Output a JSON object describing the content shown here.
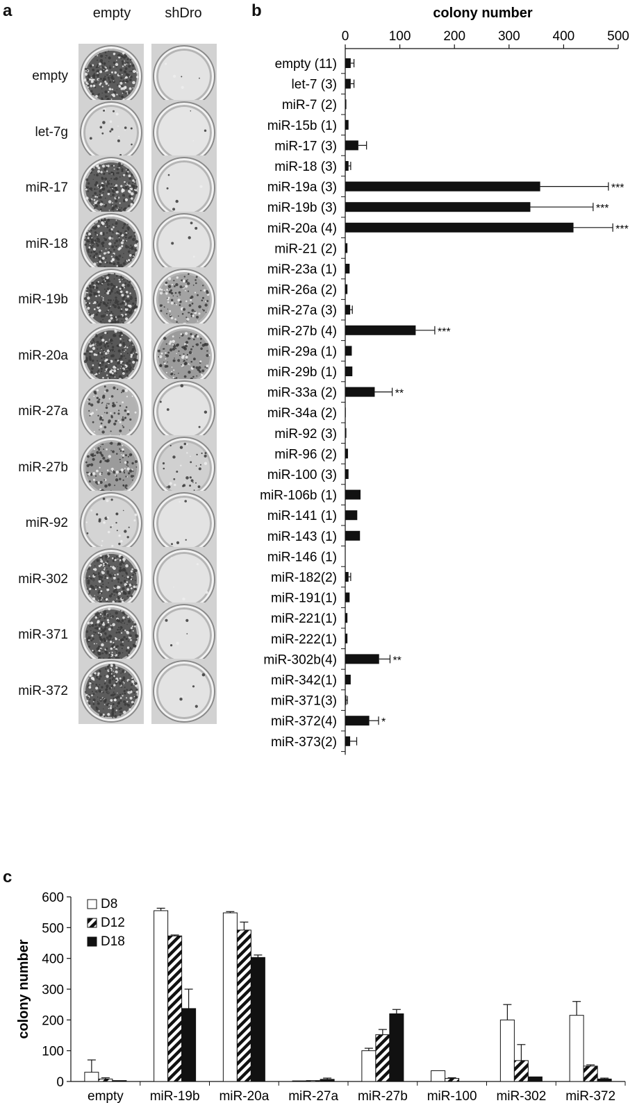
{
  "panel_a": {
    "letter": "a",
    "columns": [
      "empty",
      "shDro"
    ],
    "rows": [
      {
        "label": "empty",
        "plates": [
          0.92,
          0.02
        ]
      },
      {
        "label": "let-7g",
        "plates": [
          0.08,
          0.01
        ]
      },
      {
        "label": "miR-17",
        "plates": [
          0.9,
          0.02
        ]
      },
      {
        "label": "miR-18",
        "plates": [
          0.92,
          0.02
        ]
      },
      {
        "label": "miR-19b",
        "plates": [
          0.95,
          0.45
        ]
      },
      {
        "label": "miR-20a",
        "plates": [
          0.95,
          0.5
        ]
      },
      {
        "label": "miR-27a",
        "plates": [
          0.35,
          0.02
        ]
      },
      {
        "label": "miR-27b",
        "plates": [
          0.5,
          0.15
        ]
      },
      {
        "label": "miR-92",
        "plates": [
          0.12,
          0.02
        ]
      },
      {
        "label": "miR-302",
        "plates": [
          0.9,
          0.02
        ]
      },
      {
        "label": "miR-371",
        "plates": [
          0.92,
          0.02
        ]
      },
      {
        "label": "miR-372",
        "plates": [
          0.92,
          0.02
        ]
      }
    ],
    "colors": {
      "plate_bg": "#d2d2d2",
      "colony": "#3a3a3a"
    }
  },
  "chart_data": [
    {
      "panel": "b",
      "type": "bar",
      "orientation": "horizontal",
      "title": "colony number",
      "xlim": [
        0,
        500
      ],
      "xticks": [
        "0",
        "100",
        "200",
        "300",
        "400",
        "500"
      ],
      "bar_color": "#111111",
      "categories": [
        "empty (11)",
        "let-7 (3)",
        "miR-7 (2)",
        "miR-15b (1)",
        "miR-17 (3)",
        "miR-18 (3)",
        "miR-19a (3)",
        "miR-19b (3)",
        "miR-20a (4)",
        "miR-21 (2)",
        "miR-23a (1)",
        "miR-26a (2)",
        "miR-27a (3)",
        "miR-27b (4)",
        "miR-29a (1)",
        "miR-29b (1)",
        "miR-33a (2)",
        "miR-34a (2)",
        "miR-92 (3)",
        "miR-96 (2)",
        "miR-100 (3)",
        "miR-106b (1)",
        "miR-141 (1)",
        "miR-143 (1)",
        "miR-146 (1)",
        "miR-182(2)",
        "miR-191(1)",
        "miR-221(1)",
        "miR-222(1)",
        "miR-302b(4)",
        "miR-342(1)",
        "miR-371(3)",
        "miR-372(4)",
        "miR-373(2)"
      ],
      "values": [
        10,
        10,
        2,
        6,
        24,
        6,
        357,
        339,
        418,
        4,
        8,
        4,
        9,
        129,
        12,
        13,
        54,
        1,
        2,
        5,
        6,
        28,
        22,
        27,
        0,
        6,
        8,
        4,
        4,
        62,
        10,
        2,
        44,
        9
      ],
      "errors": [
        6,
        6,
        0,
        0,
        15,
        4,
        125,
        115,
        72,
        0,
        0,
        0,
        4,
        35,
        0,
        0,
        32,
        0,
        0,
        0,
        0,
        0,
        0,
        0,
        0,
        4,
        0,
        0,
        0,
        20,
        0,
        2,
        17,
        12
      ],
      "significance": [
        "",
        "",
        "",
        "",
        "",
        "",
        "***",
        "***",
        "***",
        "",
        "",
        "",
        "",
        "***",
        "",
        "",
        "**",
        "",
        "",
        "",
        "",
        "",
        "",
        "",
        "",
        "",
        "",
        "",
        "",
        "**",
        "",
        "",
        "*",
        ""
      ]
    },
    {
      "panel": "c",
      "type": "bar",
      "ylabel": "colony number",
      "ylim": [
        0,
        600
      ],
      "yticks": [
        "0",
        "100",
        "200",
        "300",
        "400",
        "500",
        "600"
      ],
      "categories": [
        "empty",
        "miR-19b",
        "miR-20a",
        "miR-27a",
        "miR-27b",
        "miR-100",
        "miR-302",
        "miR-372"
      ],
      "legend": "top-left",
      "series": [
        {
          "name": "D8",
          "fill": "white",
          "values": [
            30,
            555,
            548,
            2,
            100,
            35,
            200,
            215
          ],
          "errors": [
            40,
            8,
            4,
            0,
            8,
            0,
            50,
            45
          ]
        },
        {
          "name": "D12",
          "fill": "hatched",
          "values": [
            8,
            473,
            492,
            3,
            152,
            10,
            68,
            50
          ],
          "errors": [
            4,
            3,
            26,
            0,
            17,
            2,
            52,
            4
          ]
        },
        {
          "name": "D18",
          "fill": "black",
          "values": [
            3,
            237,
            403,
            7,
            220,
            0,
            15,
            8
          ],
          "errors": [
            0,
            63,
            8,
            4,
            14,
            0,
            0,
            3
          ]
        }
      ]
    }
  ]
}
